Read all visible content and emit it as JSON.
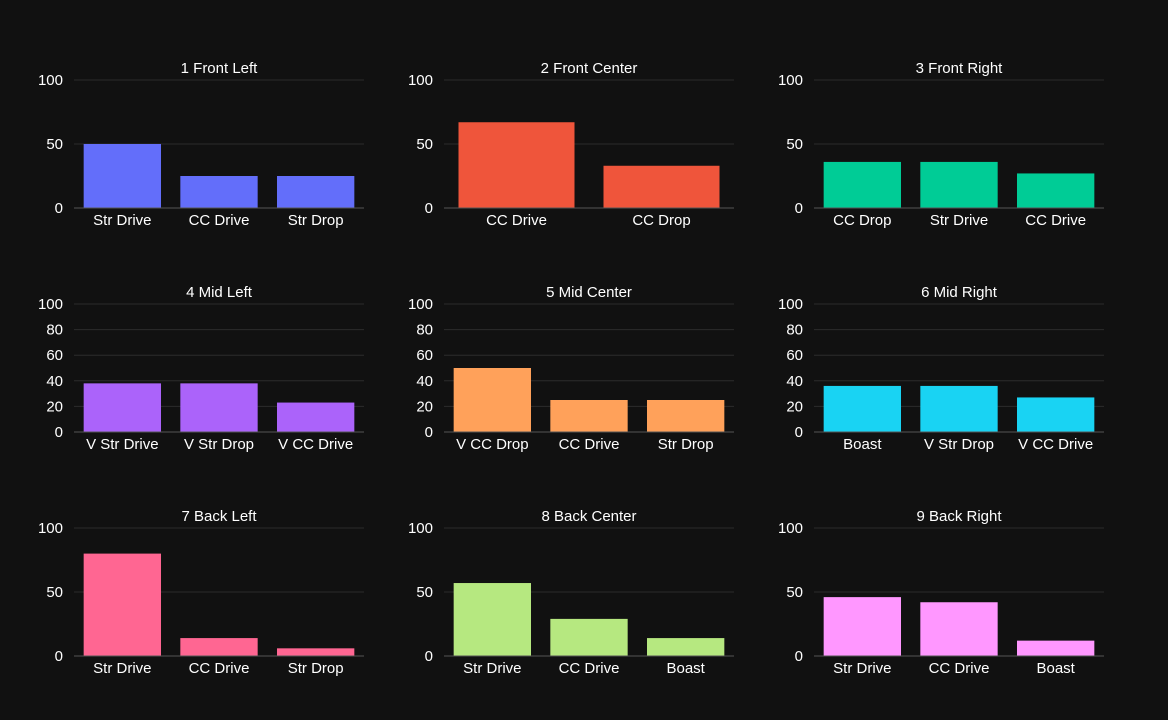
{
  "colors": {
    "background": "#111111",
    "gridline": "#2c2c2c",
    "axis": "#555555",
    "text": "#ffffff"
  },
  "chart_data": [
    {
      "type": "bar",
      "title": "1 Front Left",
      "categories": [
        "Str Drive",
        "CC Drive",
        "Str Drop"
      ],
      "values": [
        50,
        25,
        25
      ],
      "color": "#636efa",
      "ylim": [
        0,
        100
      ],
      "yticks": [
        0,
        50,
        100
      ]
    },
    {
      "type": "bar",
      "title": "2 Front Center",
      "categories": [
        "CC Drive",
        "CC Drop"
      ],
      "values": [
        67,
        33
      ],
      "color": "#ef553b",
      "ylim": [
        0,
        100
      ],
      "yticks": [
        0,
        50,
        100
      ]
    },
    {
      "type": "bar",
      "title": "3 Front Right",
      "categories": [
        "CC Drop",
        "Str Drive",
        "CC Drive"
      ],
      "values": [
        36,
        36,
        27
      ],
      "color": "#00cc96",
      "ylim": [
        0,
        100
      ],
      "yticks": [
        0,
        50,
        100
      ]
    },
    {
      "type": "bar",
      "title": "4 Mid Left",
      "categories": [
        "V Str Drive",
        "V Str Drop",
        "V CC Drive"
      ],
      "values": [
        38,
        38,
        23
      ],
      "color": "#ab63fa",
      "ylim": [
        0,
        100
      ],
      "yticks": [
        0,
        20,
        40,
        60,
        80,
        100
      ]
    },
    {
      "type": "bar",
      "title": "5 Mid Center",
      "categories": [
        "V CC Drop",
        "CC Drive",
        "Str Drop"
      ],
      "values": [
        50,
        25,
        25
      ],
      "color": "#ffa15a",
      "ylim": [
        0,
        100
      ],
      "yticks": [
        0,
        20,
        40,
        60,
        80,
        100
      ]
    },
    {
      "type": "bar",
      "title": "6 Mid Right",
      "categories": [
        "Boast",
        "V Str Drop",
        "V CC Drive"
      ],
      "values": [
        36,
        36,
        27
      ],
      "color": "#19d3f3",
      "ylim": [
        0,
        100
      ],
      "yticks": [
        0,
        20,
        40,
        60,
        80,
        100
      ]
    },
    {
      "type": "bar",
      "title": "7 Back Left",
      "categories": [
        "Str Drive",
        "CC Drive",
        "Str Drop"
      ],
      "values": [
        80,
        14,
        6
      ],
      "color": "#ff6692",
      "ylim": [
        0,
        100
      ],
      "yticks": [
        0,
        50,
        100
      ]
    },
    {
      "type": "bar",
      "title": "8 Back Center",
      "categories": [
        "Str Drive",
        "CC Drive",
        "Boast"
      ],
      "values": [
        57,
        29,
        14
      ],
      "color": "#b6e880",
      "ylim": [
        0,
        100
      ],
      "yticks": [
        0,
        50,
        100
      ]
    },
    {
      "type": "bar",
      "title": "9 Back Right",
      "categories": [
        "Str Drive",
        "CC Drive",
        "Boast"
      ],
      "values": [
        46,
        42,
        12
      ],
      "color": "#ff97ff",
      "ylim": [
        0,
        100
      ],
      "yticks": [
        0,
        50,
        100
      ]
    }
  ]
}
